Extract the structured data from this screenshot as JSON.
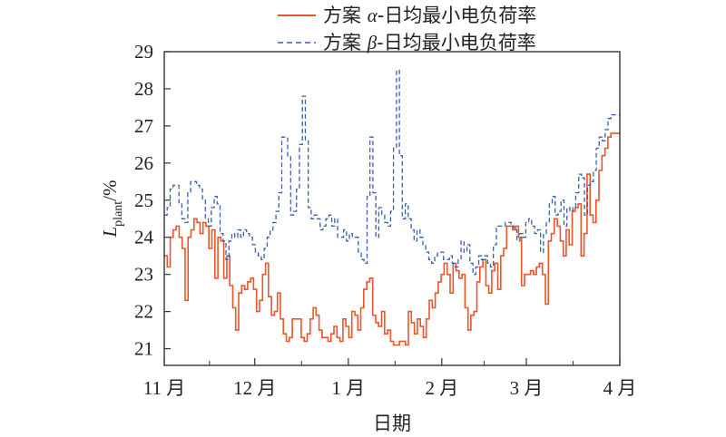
{
  "chart_data": {
    "type": "line",
    "xlabel": "日期",
    "ylabel": "L_plant/%",
    "ylabel_main": "L",
    "ylabel_sub": "plant",
    "ylabel_suffix": "/%",
    "ylim": [
      20.5,
      29
    ],
    "yticks": [
      21,
      22,
      23,
      24,
      25,
      26,
      27,
      28,
      29
    ],
    "x_ticks": [
      "11 月",
      "12 月",
      "1 月",
      "2 月",
      "3 月",
      "4 月"
    ],
    "xlim": [
      0,
      151
    ],
    "x_tick_positions": [
      0,
      30,
      61,
      92,
      120,
      151
    ],
    "legend_position": "top-right",
    "series": [
      {
        "name": "方案 α-日均最小电负荷率",
        "legend_prefix": "方案 ",
        "legend_greek": "α",
        "legend_suffix": "-日均最小电负荷率",
        "color": "#e8562a",
        "style": "solid",
        "values": [
          23.5,
          23.2,
          24.0,
          24.2,
          24.3,
          24.0,
          23.7,
          22.3,
          24.0,
          24.2,
          24.5,
          24.4,
          24.1,
          24.4,
          24.3,
          23.7,
          24.2,
          22.9,
          24.0,
          23.9,
          22.9,
          23.5,
          22.7,
          22.1,
          21.5,
          22.5,
          22.7,
          22.6,
          22.8,
          22.9,
          22.6,
          22.0,
          22.3,
          23.0,
          23.3,
          22.4,
          21.9,
          22.0,
          22.5,
          21.8,
          21.4,
          21.2,
          21.3,
          21.8,
          21.8,
          21.8,
          21.3,
          21.2,
          21.4,
          21.8,
          22.1,
          21.9,
          21.5,
          21.3,
          21.3,
          21.2,
          21.4,
          21.6,
          21.3,
          21.2,
          21.8,
          21.6,
          21.3,
          22.0,
          21.9,
          21.5,
          22.1,
          22.6,
          22.8,
          22.9,
          21.9,
          21.7,
          21.6,
          22.0,
          21.4,
          21.5,
          21.2,
          21.1,
          21.1,
          21.2,
          21.2,
          21.1,
          22.0,
          21.7,
          21.4,
          21.8,
          21.6,
          21.3,
          21.8,
          22.3,
          22.1,
          22.5,
          22.8,
          23.0,
          23.3,
          23.0,
          22.5,
          23.3,
          23.1,
          22.9,
          23.0,
          22.1,
          21.5,
          21.9,
          22.0,
          22.8,
          23.2,
          23.4,
          22.7,
          22.5,
          23.1,
          23.3,
          22.6,
          23.5,
          23.7,
          24.3,
          24.3,
          24.2,
          24.3,
          24.0,
          22.7,
          23.0,
          23.0,
          23.1,
          23.0,
          23.2,
          23.3,
          23.0,
          22.2,
          23.9,
          24.1,
          24.5,
          24.3,
          23.9,
          23.5,
          24.2,
          23.8,
          24.7,
          24.8,
          24.9,
          23.5,
          24.1,
          25.7,
          24.6,
          24.4,
          25.0,
          25.8,
          26.2,
          26.4,
          26.7,
          26.8,
          26.8,
          26.8
        ]
      },
      {
        "name": "方案 β-日均最小电负荷率",
        "legend_prefix": "方案 ",
        "legend_greek": "β",
        "legend_suffix": "-日均最小电负荷率",
        "color": "#3a5fad",
        "style": "dashed",
        "values": [
          24.6,
          24.8,
          25.3,
          25.4,
          25.4,
          24.9,
          24.5,
          24.4,
          25.2,
          25.5,
          25.5,
          25.4,
          25.3,
          25.0,
          24.5,
          24.3,
          24.8,
          25.1,
          24.9,
          24.1,
          23.9,
          23.4,
          23.9,
          24.1,
          24.0,
          24.2,
          24.0,
          24.2,
          24.1,
          24.0,
          23.8,
          23.6,
          23.5,
          23.4,
          23.7,
          24.0,
          24.2,
          24.4,
          24.7,
          25.2,
          26.7,
          26.7,
          26.2,
          24.6,
          24.7,
          25.3,
          26.5,
          27.8,
          26.6,
          24.8,
          24.5,
          24.6,
          24.5,
          24.2,
          24.3,
          24.5,
          24.6,
          24.3,
          24.5,
          24.0,
          24.0,
          24.2,
          23.9,
          24.1,
          24.0,
          24.0,
          23.6,
          23.4,
          23.3,
          25.1,
          26.7,
          25.2,
          24.0,
          24.8,
          24.6,
          24.4,
          24.3,
          24.7,
          26.4,
          28.5,
          26.2,
          24.5,
          24.9,
          24.5,
          24.2,
          23.9,
          24.2,
          24.0,
          23.8,
          23.6,
          23.4,
          23.3,
          23.5,
          23.6,
          23.6,
          23.4,
          23.4,
          23.5,
          23.3,
          23.2,
          23.4,
          23.9,
          23.6,
          23.8,
          23.3,
          23.0,
          23.2,
          23.5,
          23.4,
          23.5,
          23.3,
          23.2,
          23.8,
          24.3,
          24.3,
          24.3,
          24.4,
          24.4,
          24.3,
          24.2,
          23.9,
          24.1,
          24.0,
          24.4,
          24.5,
          24.3,
          24.1,
          24.2,
          23.6,
          24.1,
          24.4,
          24.9,
          25.1,
          24.6,
          24.7,
          25.0,
          24.3,
          24.8,
          24.7,
          24.8,
          25.2,
          25.7,
          25.6,
          24.6,
          25.4,
          25.5,
          25.8,
          26.4,
          26.7,
          26.6,
          26.9,
          27.2,
          27.3,
          27.3,
          27.3
        ]
      }
    ]
  }
}
